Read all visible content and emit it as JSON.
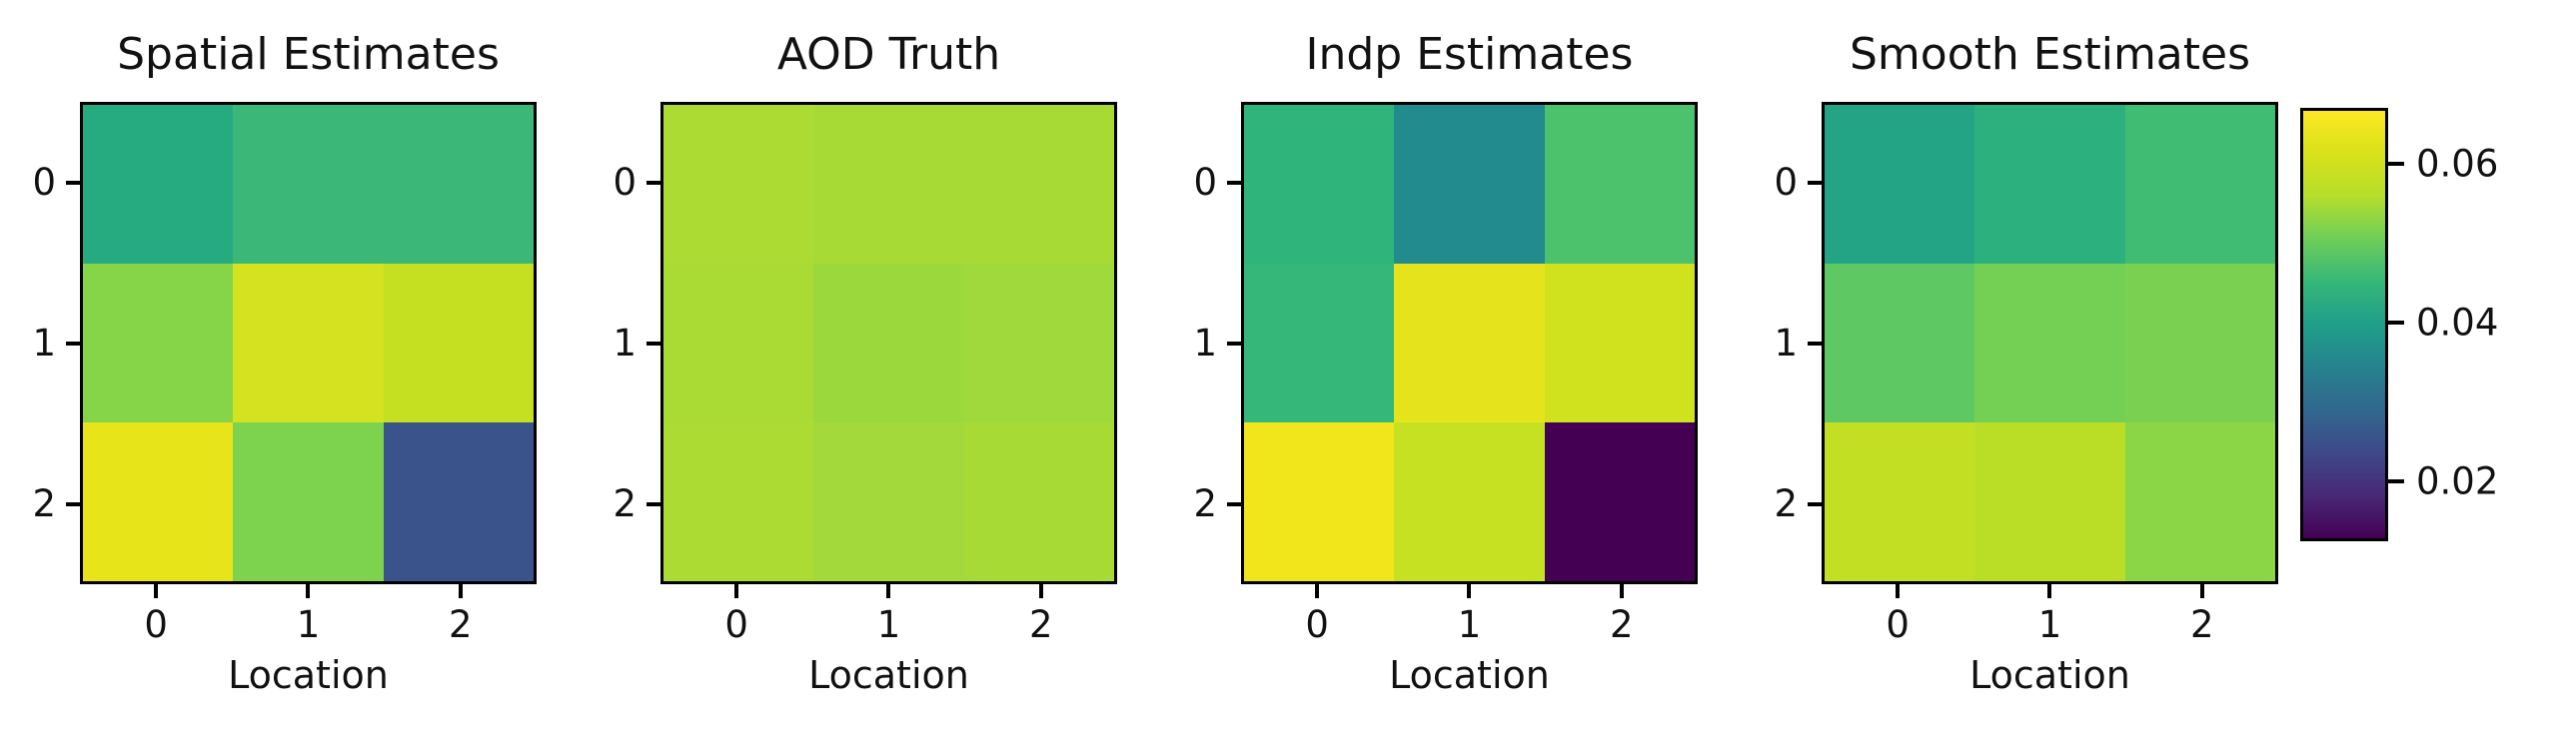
{
  "figure": {
    "background": "#ffffff",
    "text_color": "#111111",
    "colormap": "viridis"
  },
  "axes": {
    "x_label": "Location",
    "x_ticks": [
      "0",
      "1",
      "2"
    ],
    "y_ticks": [
      "0",
      "1",
      "2"
    ]
  },
  "colorbar": {
    "vmin": 0.013,
    "vmax": 0.067,
    "top_color": "#fde725",
    "bottom_color": "#440154",
    "ticks": [
      {
        "label": "0.06",
        "position_pct": 12.8
      },
      {
        "label": "0.04",
        "position_pct": 49.5
      },
      {
        "label": "0.02",
        "position_pct": 86.2
      }
    ]
  },
  "chart_data": [
    {
      "type": "heatmap",
      "title": "Spatial Estimates",
      "xlabel": "Location",
      "x": [
        0,
        1,
        2
      ],
      "y": [
        0,
        1,
        2
      ],
      "values": [
        [
          0.042,
          0.046,
          0.046
        ],
        [
          0.053,
          0.061,
          0.059
        ],
        [
          0.063,
          0.052,
          0.024
        ]
      ],
      "cell_colors": [
        [
          "#26ab81",
          "#3bb877",
          "#3bb877"
        ],
        [
          "#86d549",
          "#d4e21f",
          "#c5e021"
        ],
        [
          "#e7e419",
          "#7ed34e",
          "#3a538b"
        ]
      ],
      "colorbar_ticks": [
        0.02,
        0.04,
        0.06
      ]
    },
    {
      "type": "heatmap",
      "title": "AOD Truth",
      "xlabel": "Location",
      "x": [
        0,
        1,
        2
      ],
      "y": [
        0,
        1,
        2
      ],
      "values": [
        [
          0.055,
          0.055,
          0.055
        ],
        [
          0.055,
          0.054,
          0.054
        ],
        [
          0.055,
          0.054,
          0.055
        ]
      ],
      "cell_colors": [
        [
          "#acdb33",
          "#a8da36",
          "#a8da36"
        ],
        [
          "#aadb34",
          "#9bd83c",
          "#a0d93b"
        ],
        [
          "#acdb33",
          "#a3d93a",
          "#a8da36"
        ]
      ],
      "colorbar_ticks": [
        0.02,
        0.04,
        0.06
      ]
    },
    {
      "type": "heatmap",
      "title": "Indp Estimates",
      "xlabel": "Location",
      "x": [
        0,
        1,
        2
      ],
      "y": [
        0,
        1,
        2
      ],
      "values": [
        [
          0.044,
          0.035,
          0.048
        ],
        [
          0.045,
          0.063,
          0.06
        ],
        [
          0.064,
          0.059,
          0.013
        ]
      ],
      "cell_colors": [
        [
          "#2fb47c",
          "#228b8d",
          "#4cc26c"
        ],
        [
          "#35b779",
          "#e5e41c",
          "#d0e11d"
        ],
        [
          "#f1e51c",
          "#c6e022",
          "#440154"
        ]
      ],
      "colorbar_ticks": [
        0.02,
        0.04,
        0.06
      ]
    },
    {
      "type": "heatmap",
      "title": "Smooth Estimates",
      "xlabel": "Location",
      "x": [
        0,
        1,
        2
      ],
      "y": [
        0,
        1,
        2
      ],
      "values": [
        [
          0.041,
          0.043,
          0.047
        ],
        [
          0.05,
          0.051,
          0.052
        ],
        [
          0.058,
          0.057,
          0.053
        ]
      ],
      "cell_colors": [
        [
          "#23a585",
          "#2cb17e",
          "#40bd72"
        ],
        [
          "#5ec962",
          "#74d055",
          "#7ad151"
        ],
        [
          "#c2df23",
          "#bade26",
          "#8bd646"
        ]
      ]
    }
  ]
}
